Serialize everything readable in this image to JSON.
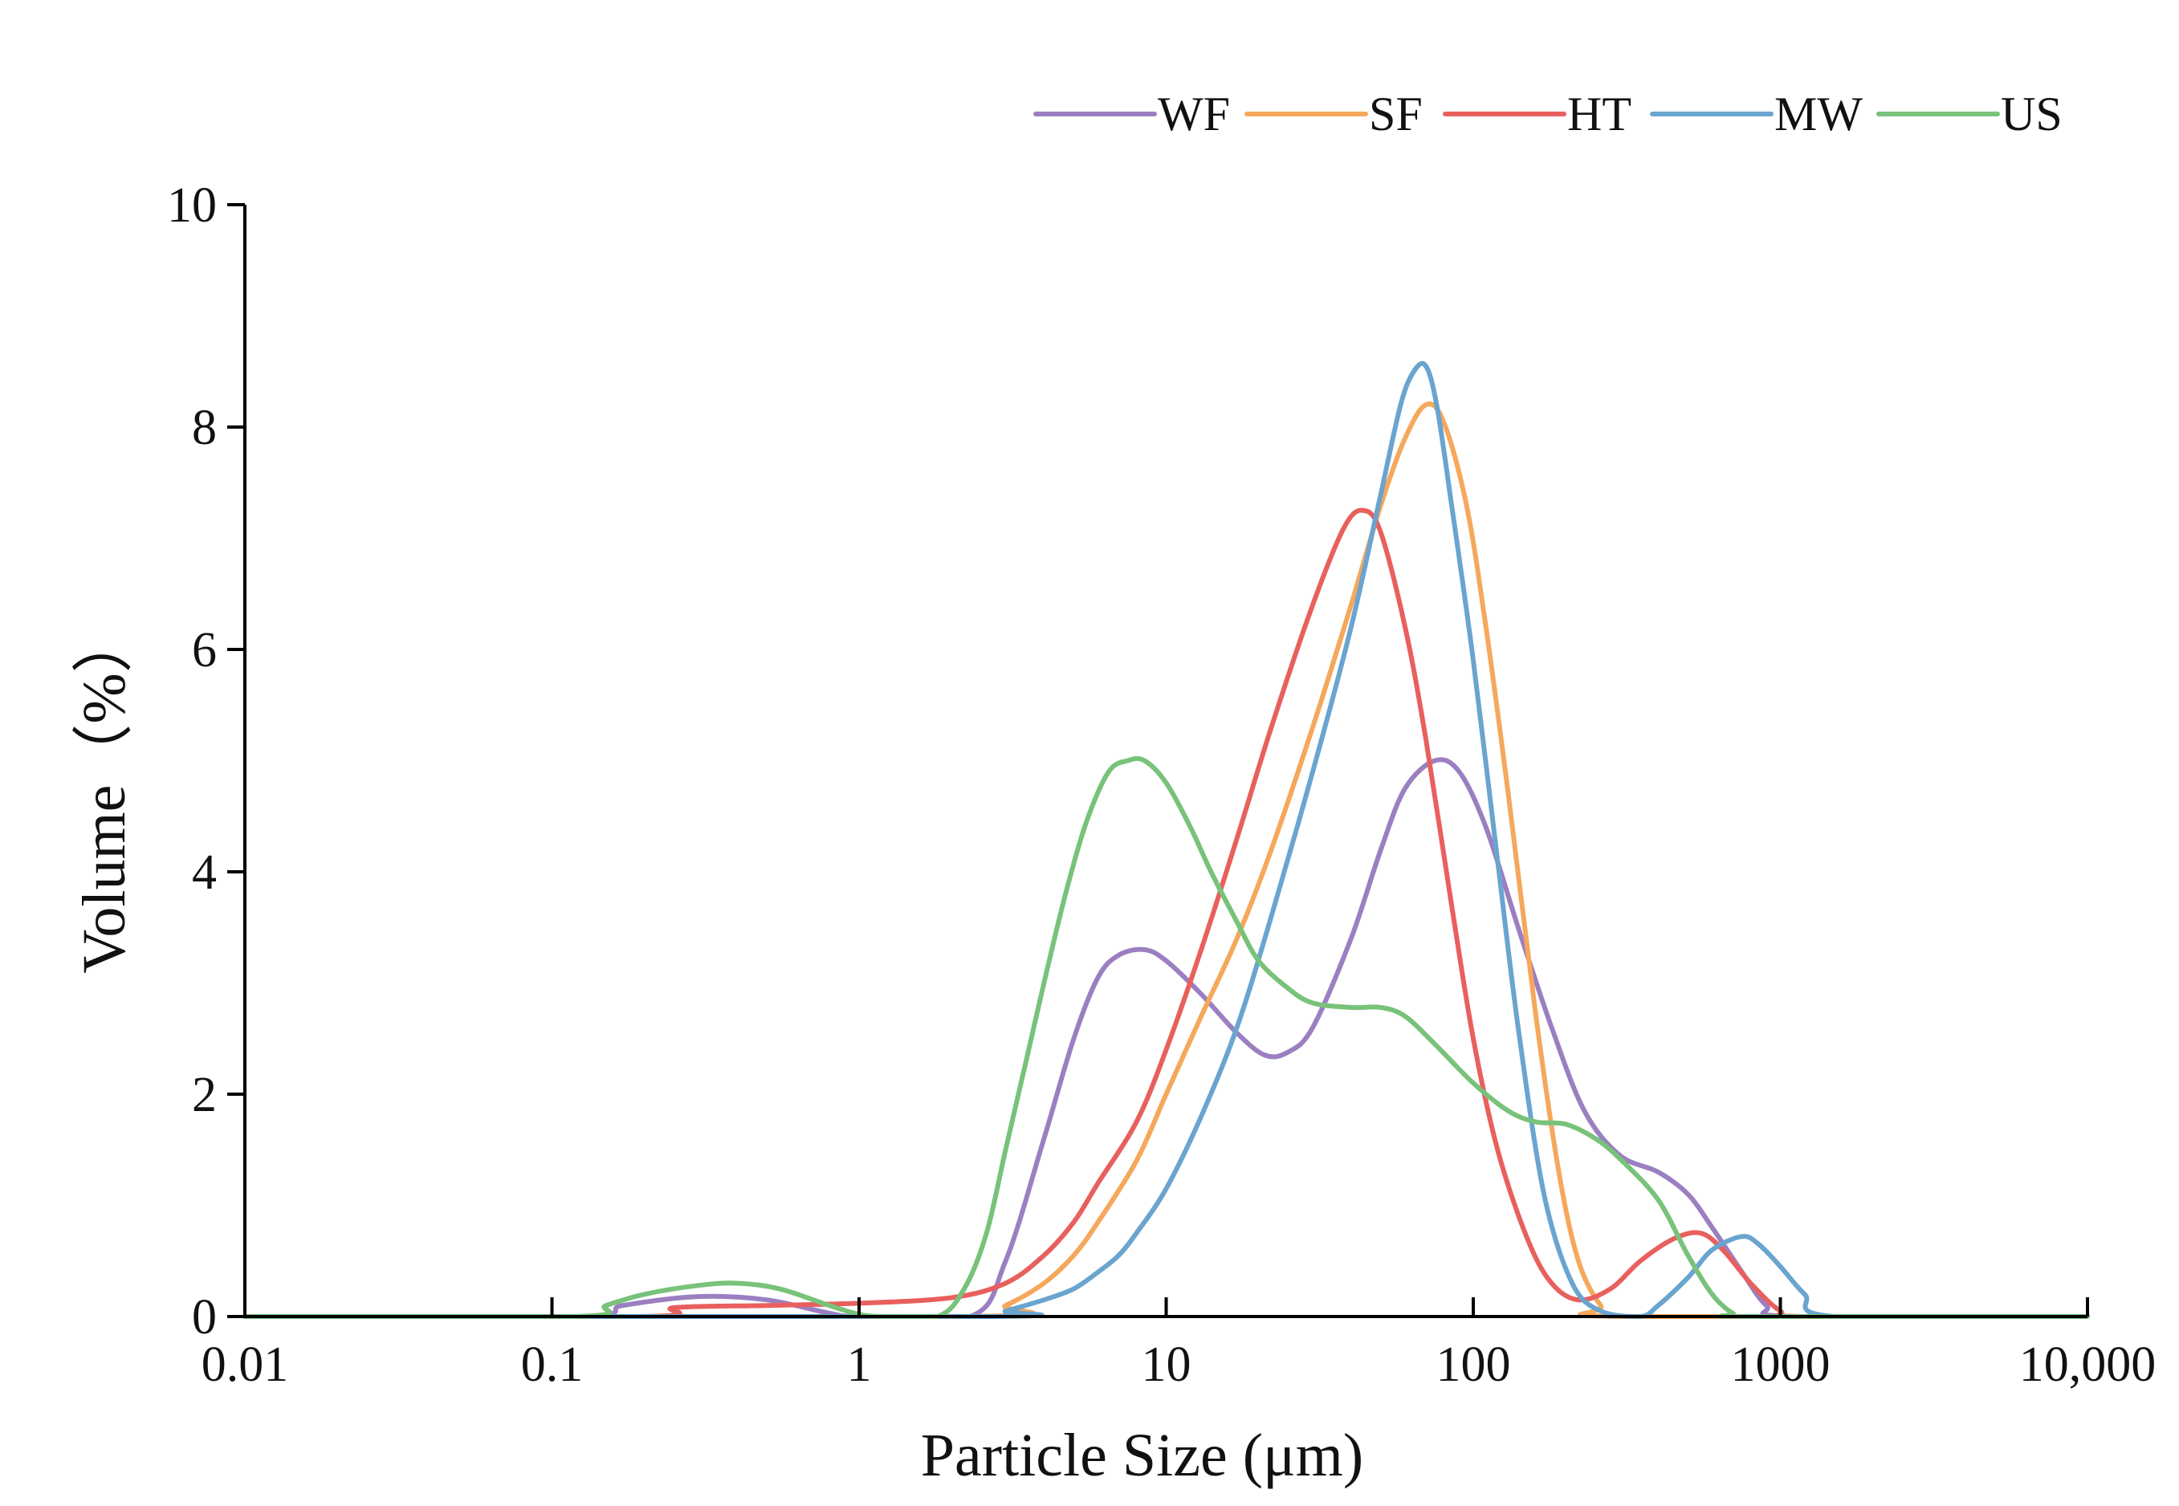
{
  "chart_data": {
    "type": "line",
    "xlabel": "Particle Size (μm)",
    "ylabel": "Volume（%）",
    "x_scale": "log",
    "xlim": [
      0.01,
      10000
    ],
    "ylim": [
      0,
      10
    ],
    "x_ticks": [
      0.01,
      0.1,
      1,
      10,
      100,
      1000,
      10000
    ],
    "x_tick_labels": [
      "0.01",
      "0.1",
      "1",
      "10",
      "100",
      "1000",
      "10,000"
    ],
    "y_ticks": [
      0,
      2,
      4,
      6,
      8,
      10
    ],
    "y_tick_labels": [
      "0",
      "2",
      "4",
      "6",
      "8",
      "10"
    ],
    "grid": false,
    "legend_position": "top-right",
    "series": [
      {
        "name": "WF",
        "color": "#9b7fc1",
        "points": [
          [
            0.01,
            0
          ],
          [
            0.12,
            0
          ],
          [
            0.17,
            0.1
          ],
          [
            0.3,
            0.18
          ],
          [
            0.5,
            0.15
          ],
          [
            0.8,
            0.03
          ],
          [
            1,
            0
          ],
          [
            2.3,
            0
          ],
          [
            3,
            0.5
          ],
          [
            4,
            1.6
          ],
          [
            5,
            2.5
          ],
          [
            6,
            3.05
          ],
          [
            7,
            3.25
          ],
          [
            8.5,
            3.3
          ],
          [
            10,
            3.2
          ],
          [
            13,
            2.9
          ],
          [
            17,
            2.55
          ],
          [
            21,
            2.35
          ],
          [
            25,
            2.38
          ],
          [
            30,
            2.6
          ],
          [
            40,
            3.4
          ],
          [
            50,
            4.2
          ],
          [
            60,
            4.75
          ],
          [
            75,
            5.0
          ],
          [
            90,
            4.9
          ],
          [
            110,
            4.4
          ],
          [
            140,
            3.5
          ],
          [
            180,
            2.6
          ],
          [
            230,
            1.85
          ],
          [
            300,
            1.45
          ],
          [
            400,
            1.3
          ],
          [
            500,
            1.1
          ],
          [
            600,
            0.8
          ],
          [
            750,
            0.4
          ],
          [
            900,
            0.1
          ],
          [
            1100,
            0
          ],
          [
            10000,
            0
          ]
        ]
      },
      {
        "name": "SF",
        "color": "#f5a85c",
        "points": [
          [
            0.01,
            0
          ],
          [
            2.3,
            0
          ],
          [
            3,
            0.1
          ],
          [
            4,
            0.3
          ],
          [
            5,
            0.55
          ],
          [
            6,
            0.85
          ],
          [
            8,
            1.4
          ],
          [
            10,
            2.0
          ],
          [
            13,
            2.7
          ],
          [
            17,
            3.4
          ],
          [
            22,
            4.2
          ],
          [
            30,
            5.3
          ],
          [
            40,
            6.4
          ],
          [
            50,
            7.3
          ],
          [
            60,
            7.9
          ],
          [
            70,
            8.2
          ],
          [
            80,
            8.05
          ],
          [
            95,
            7.3
          ],
          [
            110,
            6.2
          ],
          [
            130,
            4.7
          ],
          [
            160,
            2.7
          ],
          [
            190,
            1.3
          ],
          [
            220,
            0.5
          ],
          [
            260,
            0.1
          ],
          [
            300,
            0
          ],
          [
            10000,
            0
          ]
        ]
      },
      {
        "name": "HT",
        "color": "#e8605e",
        "points": [
          [
            0.01,
            0
          ],
          [
            0.2,
            0
          ],
          [
            0.25,
            0.08
          ],
          [
            0.5,
            0.1
          ],
          [
            1,
            0.12
          ],
          [
            2,
            0.17
          ],
          [
            3,
            0.3
          ],
          [
            4,
            0.55
          ],
          [
            5,
            0.85
          ],
          [
            6,
            1.2
          ],
          [
            8,
            1.75
          ],
          [
            10,
            2.4
          ],
          [
            13,
            3.3
          ],
          [
            17,
            4.3
          ],
          [
            22,
            5.3
          ],
          [
            30,
            6.4
          ],
          [
            38,
            7.1
          ],
          [
            44,
            7.25
          ],
          [
            50,
            7.05
          ],
          [
            60,
            6.2
          ],
          [
            70,
            5.2
          ],
          [
            85,
            3.7
          ],
          [
            100,
            2.5
          ],
          [
            120,
            1.5
          ],
          [
            150,
            0.7
          ],
          [
            180,
            0.3
          ],
          [
            220,
            0.15
          ],
          [
            280,
            0.25
          ],
          [
            350,
            0.5
          ],
          [
            450,
            0.7
          ],
          [
            550,
            0.75
          ],
          [
            650,
            0.6
          ],
          [
            800,
            0.3
          ],
          [
            1000,
            0.05
          ],
          [
            1200,
            0
          ],
          [
            10000,
            0
          ]
        ]
      },
      {
        "name": "MW",
        "color": "#6aa4cf",
        "points": [
          [
            0.01,
            0
          ],
          [
            2.5,
            0
          ],
          [
            3,
            0.05
          ],
          [
            4,
            0.15
          ],
          [
            5,
            0.25
          ],
          [
            6,
            0.4
          ],
          [
            7,
            0.55
          ],
          [
            8,
            0.75
          ],
          [
            10,
            1.15
          ],
          [
            13,
            1.8
          ],
          [
            17,
            2.6
          ],
          [
            22,
            3.6
          ],
          [
            30,
            4.9
          ],
          [
            40,
            6.2
          ],
          [
            50,
            7.4
          ],
          [
            58,
            8.2
          ],
          [
            64,
            8.5
          ],
          [
            70,
            8.55
          ],
          [
            76,
            8.2
          ],
          [
            85,
            7.3
          ],
          [
            100,
            5.9
          ],
          [
            120,
            4.1
          ],
          [
            140,
            2.6
          ],
          [
            170,
            1.1
          ],
          [
            210,
            0.3
          ],
          [
            260,
            0.05
          ],
          [
            350,
            0
          ],
          [
            400,
            0.1
          ],
          [
            500,
            0.35
          ],
          [
            600,
            0.6
          ],
          [
            750,
            0.72
          ],
          [
            850,
            0.65
          ],
          [
            1000,
            0.45
          ],
          [
            1200,
            0.2
          ],
          [
            1500,
            0
          ],
          [
            10000,
            0
          ]
        ]
      },
      {
        "name": "US",
        "color": "#78c27a",
        "points": [
          [
            0.01,
            0
          ],
          [
            0.12,
            0
          ],
          [
            0.15,
            0.1
          ],
          [
            0.2,
            0.2
          ],
          [
            0.3,
            0.28
          ],
          [
            0.4,
            0.3
          ],
          [
            0.55,
            0.25
          ],
          [
            0.8,
            0.1
          ],
          [
            1,
            0.02
          ],
          [
            1.2,
            0
          ],
          [
            1.8,
            0
          ],
          [
            2.2,
            0.25
          ],
          [
            2.6,
            0.75
          ],
          [
            3,
            1.5
          ],
          [
            3.5,
            2.3
          ],
          [
            4,
            3.0
          ],
          [
            4.7,
            3.8
          ],
          [
            5.5,
            4.45
          ],
          [
            6.5,
            4.9
          ],
          [
            7.5,
            5.0
          ],
          [
            8.5,
            5.0
          ],
          [
            10,
            4.8
          ],
          [
            12,
            4.4
          ],
          [
            14,
            4.0
          ],
          [
            17,
            3.55
          ],
          [
            20,
            3.2
          ],
          [
            25,
            2.95
          ],
          [
            30,
            2.82
          ],
          [
            40,
            2.78
          ],
          [
            50,
            2.78
          ],
          [
            60,
            2.7
          ],
          [
            75,
            2.45
          ],
          [
            100,
            2.1
          ],
          [
            130,
            1.85
          ],
          [
            160,
            1.75
          ],
          [
            200,
            1.73
          ],
          [
            250,
            1.6
          ],
          [
            300,
            1.42
          ],
          [
            400,
            1.05
          ],
          [
            500,
            0.55
          ],
          [
            600,
            0.2
          ],
          [
            700,
            0.03
          ],
          [
            800,
            0
          ],
          [
            10000,
            0
          ]
        ]
      }
    ]
  }
}
